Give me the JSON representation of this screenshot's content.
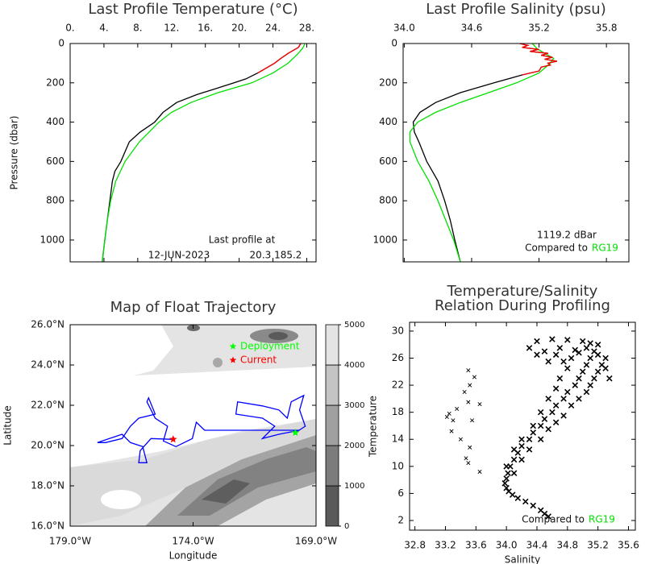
{
  "chart_data": [
    {
      "type": "line",
      "title": "Last Profile Temperature (°C)",
      "y_label": "Pressure (dbar)",
      "x_axis": "top",
      "xlim": [
        0,
        29.1
      ],
      "xticks": [
        {
          "value": 0,
          "label": "0."
        },
        {
          "value": 4,
          "label": "4."
        },
        {
          "value": 8,
          "label": "8."
        },
        {
          "value": 12,
          "label": "12."
        },
        {
          "value": 16,
          "label": "16."
        },
        {
          "value": 20,
          "label": "20."
        },
        {
          "value": 24,
          "label": "24."
        },
        {
          "value": 28,
          "label": "28."
        }
      ],
      "ylim": [
        1111,
        0
      ],
      "yticks": [
        0,
        200,
        400,
        600,
        800,
        1000
      ],
      "series": [
        {
          "color": "#000000",
          "x": [
            27.3,
            27.0,
            25.8,
            24.8,
            24.2,
            23.0,
            22.2,
            20.8,
            19.4,
            17.2,
            15.0,
            12.6,
            11.0,
            10.0,
            8.3,
            7.0,
            6.5,
            6.0,
            5.3,
            5.0,
            4.7,
            4.4,
            4.1,
            3.8
          ],
          "y": [
            0,
            20,
            50,
            80,
            100,
            130,
            150,
            180,
            200,
            230,
            260,
            300,
            350,
            400,
            450,
            500,
            550,
            600,
            650,
            700,
            800,
            900,
            1000,
            1111
          ]
        },
        {
          "color": "#00e000",
          "x": [
            27.8,
            27.5,
            27.0,
            25.8,
            24.0,
            21.5,
            17.5,
            14.3,
            12.0,
            10.5,
            8.2,
            6.5,
            5.4,
            4.8,
            4.4,
            4.1,
            3.8
          ],
          "y": [
            0,
            25,
            50,
            100,
            150,
            200,
            250,
            300,
            350,
            400,
            500,
            600,
            700,
            800,
            900,
            1000,
            1111
          ]
        },
        {
          "color": "#ff0000",
          "x": [
            27.3,
            27.0,
            25.8,
            24.8,
            24.2,
            23.0,
            22.2
          ],
          "y": [
            0,
            20,
            50,
            80,
            100,
            130,
            150
          ]
        }
      ],
      "annotations": [
        "Last profile at",
        "12-JUN-2023",
        "20.3 185.2"
      ]
    },
    {
      "type": "line",
      "title": "Last Profile Salinity (psu)",
      "x_axis": "top",
      "xlim": [
        33.99,
        36.0
      ],
      "xticks": [
        {
          "value": 34.0,
          "label": "34.0"
        },
        34.6,
        35.2,
        35.8
      ],
      "ylim": [
        1111,
        0
      ],
      "yticks": [
        0,
        200,
        400,
        600,
        800,
        1000
      ],
      "series": [
        {
          "color": "#000000",
          "x": [
            35.03,
            35.1,
            35.05,
            35.2,
            35.12,
            35.28,
            35.22,
            35.32,
            35.25,
            35.36,
            35.28,
            35.3,
            35.22,
            35.2,
            35.05,
            34.8,
            34.5,
            34.28,
            34.14,
            34.08,
            34.09,
            34.13,
            34.2,
            34.3,
            34.36,
            34.41,
            34.45,
            34.5
          ],
          "y": [
            0,
            10,
            20,
            30,
            40,
            50,
            60,
            70,
            80,
            90,
            100,
            110,
            120,
            140,
            160,
            200,
            250,
            300,
            350,
            400,
            450,
            500,
            600,
            700,
            800,
            900,
            1000,
            1111
          ]
        },
        {
          "color": "#00e000",
          "x": [
            35.14,
            35.18,
            35.25,
            35.33,
            35.3,
            35.25,
            35.2,
            35.0,
            34.75,
            34.5,
            34.28,
            34.12,
            34.05,
            34.05,
            34.12,
            34.22,
            34.3,
            34.37,
            34.44,
            34.5
          ],
          "y": [
            0,
            25,
            50,
            75,
            100,
            125,
            150,
            200,
            250,
            300,
            350,
            400,
            450,
            500,
            600,
            700,
            800,
            900,
            1000,
            1111
          ]
        },
        {
          "color": "#ff0000",
          "x": [
            35.03,
            35.1,
            35.05,
            35.2,
            35.12,
            35.28,
            35.22,
            35.32,
            35.25,
            35.36,
            35.28,
            35.3,
            35.22,
            35.2,
            35.05
          ],
          "y": [
            0,
            10,
            20,
            30,
            40,
            50,
            60,
            70,
            80,
            90,
            100,
            110,
            120,
            140,
            160
          ]
        }
      ],
      "annotations": [
        "1119.2 dBar",
        "Compared to"
      ],
      "reference": {
        "label": "RG19",
        "color": "#00e000"
      }
    },
    {
      "type": "map",
      "title": "Map of Float Trajectory",
      "x_label": "Longitude",
      "y_label": "Latitude",
      "x_axis": "bottom",
      "xlim": [
        -179,
        -169
      ],
      "xticks": [
        {
          "value": -179,
          "label": "179.0°W"
        },
        {
          "value": -174,
          "label": "174.0°W"
        },
        {
          "value": -169,
          "label": "169.0°W"
        }
      ],
      "ylim": [
        16,
        26
      ],
      "yticks": [
        {
          "value": 16,
          "label": "16.0°N"
        },
        {
          "value": 18,
          "label": "18.0°N"
        },
        {
          "value": 20,
          "label": "20.0°N"
        },
        {
          "value": 22,
          "label": "22.0°N"
        },
        {
          "value": 24,
          "label": "24.0°N"
        },
        {
          "value": 26,
          "label": "26.0°N"
        }
      ],
      "series": [
        {
          "color": "#0000ff",
          "x": [
            -169.84,
            -169.44,
            -169.67,
            -169.5,
            -170.01,
            -170.17,
            -170.51,
            -171.18,
            -172.19,
            -172.26,
            -171.18,
            -170.68,
            -171.18,
            -170.51,
            -169.67,
            -171.85,
            -173.53,
            -173.87,
            -174.03,
            -174.7,
            -175.21,
            -175.04,
            -175.54,
            -175.88,
            -175.81,
            -175.54,
            -176.21,
            -176.55,
            -176.89,
            -177.56,
            -177.89,
            -176.89,
            -176.55,
            -176.05,
            -175.88,
            -176.21,
            -176.15,
            -175.71,
            -174.81
          ],
          "y": [
            20.64,
            20.96,
            21.77,
            22.49,
            22.17,
            21.36,
            21.77,
            21.97,
            22.17,
            21.56,
            21.36,
            20.96,
            20.35,
            20.56,
            20.76,
            20.76,
            20.76,
            21.16,
            20.35,
            19.95,
            20.23,
            20.96,
            21.36,
            22.17,
            22.37,
            21.56,
            21.36,
            20.96,
            20.35,
            20.15,
            20.15,
            20.56,
            20.15,
            19.95,
            19.15,
            19.15,
            19.75,
            20.35,
            20.31
          ]
        }
      ],
      "markers": [
        {
          "label": "Deployment",
          "color": "#00ff00",
          "x": -169.84,
          "y": 20.64
        },
        {
          "label": "Current",
          "color": "#ff0000",
          "x": -174.81,
          "y": 20.31
        }
      ],
      "colorbar": {
        "lim": [
          0,
          5000
        ],
        "ticks": [
          0,
          1000,
          2000,
          3000,
          4000,
          5000
        ],
        "colors": [
          "#5a5a5a",
          "#7c7c7c",
          "#a0a0a0",
          "#c4c4c4",
          "#e4e4e4"
        ]
      }
    },
    {
      "type": "scatter",
      "title": [
        "Temperature/Salinity",
        "Relation During Profiling"
      ],
      "x_label": "Salinity",
      "y_label": "Temperature",
      "x_axis": "bottom",
      "xlim": [
        32.73,
        35.69
      ],
      "xticks": [
        32.8,
        33.2,
        33.6,
        {
          "value": 34.0,
          "label": "34.0"
        },
        34.4,
        34.8,
        35.2,
        35.6
      ],
      "ylim": [
        0.57,
        31.3
      ],
      "yticks": [
        2,
        6,
        10,
        14,
        18,
        22,
        26,
        30
      ],
      "series": [
        {
          "color": "#000000",
          "x": [
            34.55,
            34.5,
            34.45,
            34.35,
            34.25,
            34.15,
            34.08,
            34.03,
            34.0,
            33.98,
            34.0,
            34.02,
            34.05,
            34.1,
            34.15,
            34.2,
            34.3,
            34.35,
            34.45,
            34.5,
            34.6,
            34.65,
            34.75,
            34.8,
            34.9,
            34.95,
            35.0,
            35.05,
            35.1,
            35.15,
            35.2,
            34.1,
            34.2,
            34.3,
            34.45,
            34.55,
            34.65,
            34.75,
            34.85,
            34.95,
            35.05,
            35.1,
            35.15,
            35.2,
            35.25,
            35.3,
            34.0,
            34.1,
            34.2,
            34.35,
            34.45,
            34.55,
            34.65,
            34.7,
            34.8,
            34.85,
            34.3,
            34.4,
            34.5,
            34.6,
            34.7,
            34.8,
            34.9,
            35.0,
            35.1,
            35.2,
            34.55,
            34.65,
            34.75,
            34.95,
            35.05,
            34.4,
            35.3,
            35.35
          ],
          "y": [
            2.6,
            3.0,
            3.5,
            4.2,
            4.8,
            5.3,
            5.8,
            6.3,
            6.8,
            7.5,
            8.2,
            9,
            10,
            11,
            12,
            13,
            14,
            15,
            16,
            17,
            18,
            19,
            20,
            21,
            22,
            23,
            24,
            25,
            26,
            27,
            28,
            9,
            11,
            12.5,
            14,
            15.5,
            16.5,
            17.5,
            19,
            20,
            21,
            22,
            23,
            24,
            25,
            26,
            10,
            12.5,
            14,
            16,
            18,
            20,
            21.5,
            23,
            24.5,
            26,
            27.5,
            28.5,
            27,
            28.8,
            27.5,
            28.7,
            27.2,
            28.5,
            28.2,
            26.5,
            25.5,
            26.5,
            25.5,
            26.8,
            27.5,
            26.5,
            24.5,
            23
          ]
        },
        {
          "color": "#000000",
          "x": [
            33.5,
            33.58,
            33.52,
            33.45,
            33.5,
            33.65,
            33.35,
            33.25,
            33.22,
            33.3,
            33.55,
            33.28,
            33.4,
            33.52,
            33.47,
            33.5,
            33.65
          ],
          "y": [
            24.2,
            23.2,
            22.0,
            21.0,
            19.5,
            19.2,
            18.5,
            17.8,
            17.3,
            16.8,
            16.8,
            15.2,
            14.0,
            12.8,
            11.2,
            10.5,
            9.2
          ]
        }
      ],
      "annotations": [
        "Compared to"
      ],
      "reference": {
        "label": "RG19",
        "color": "#00e000"
      }
    }
  ]
}
